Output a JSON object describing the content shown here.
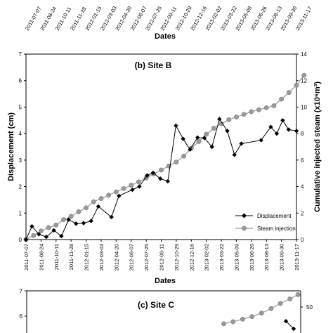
{
  "top_panel": {
    "tick_labels": [
      "2011-07-07",
      "2011-08-24",
      "2011-10-11",
      "2011-11-28",
      "2012-01-15",
      "2012-03-03",
      "2012-04-20",
      "2012-06-07",
      "2012-07-25",
      "2012-09-11",
      "2012-10-29",
      "2012-12-16",
      "2013-02-02",
      "2013-03-22",
      "2013-05-09",
      "2013-06-26",
      "2013-08-13",
      "2013-09-30",
      "2013-11-17"
    ],
    "xlabel": "Dates"
  },
  "chart_data": [
    {
      "type": "line",
      "title": "(b) Site B",
      "xlabel": "Dates",
      "ylabel": "Displacement (cm)",
      "y2label": "Cumulative injected steam (x10⁶m³)",
      "xlim": [
        "2011-07-07",
        "2013-11-17"
      ],
      "ylim": [
        0,
        7
      ],
      "y2lim": [
        0,
        14
      ],
      "yticks": [
        0,
        1,
        2,
        3,
        4,
        5,
        6,
        7
      ],
      "y2ticks": [
        0,
        2,
        4,
        6,
        8,
        10,
        12,
        14
      ],
      "xticks": [
        "2011-07-07",
        "2011-08-24",
        "2011-10-11",
        "2011-11-28",
        "2012-01-15",
        "2012-03-03",
        "2012-04-20",
        "2012-06-07",
        "2012-07-25",
        "2012-09-11",
        "2012-10-29",
        "2012-12-16",
        "2013-02-02",
        "2013-03-22",
        "2013-05-09",
        "2013-06-26",
        "2013-08-13",
        "2013-09-30",
        "2013-11-17"
      ],
      "grid": false,
      "legend": "bottom-right",
      "series": [
        {
          "name": "Displacement",
          "axis": "left",
          "color": "#000000",
          "marker": "diamond",
          "points": [
            [
              "2011-07-07",
              0.0
            ],
            [
              "2011-07-26",
              0.5
            ],
            [
              "2011-08-17",
              0.2
            ],
            [
              "2011-09-10",
              0.1
            ],
            [
              "2011-10-04",
              0.35
            ],
            [
              "2011-10-28",
              0.13
            ],
            [
              "2011-11-20",
              0.75
            ],
            [
              "2011-12-14",
              0.6
            ],
            [
              "2012-01-07",
              0.62
            ],
            [
              "2012-01-31",
              0.7
            ],
            [
              "2012-02-23",
              1.25
            ],
            [
              "2012-04-05",
              0.85
            ],
            [
              "2012-04-29",
              1.65
            ],
            [
              "2012-06-11",
              1.88
            ],
            [
              "2012-07-03",
              2.0
            ],
            [
              "2012-07-28",
              2.42
            ],
            [
              "2012-08-16",
              2.52
            ],
            [
              "2012-09-08",
              2.3
            ],
            [
              "2012-10-02",
              2.2
            ],
            [
              "2012-10-28",
              4.3
            ],
            [
              "2012-11-20",
              3.8
            ],
            [
              "2012-12-12",
              3.4
            ],
            [
              "2013-01-05",
              3.85
            ],
            [
              "2013-01-27",
              3.83
            ],
            [
              "2013-02-20",
              3.5
            ],
            [
              "2013-03-16",
              4.55
            ],
            [
              "2013-04-10",
              4.1
            ],
            [
              "2013-05-03",
              3.2
            ],
            [
              "2013-05-25",
              3.62
            ],
            [
              "2013-07-27",
              3.75
            ],
            [
              "2013-08-27",
              4.25
            ],
            [
              "2013-09-15",
              4.0
            ],
            [
              "2013-10-04",
              4.5
            ],
            [
              "2013-10-23",
              4.15
            ],
            [
              "2013-11-17",
              4.1
            ]
          ]
        },
        {
          "name": "Steam injection",
          "axis": "right",
          "color": "#999999",
          "marker": "circle",
          "points": [
            [
              "2011-07-07",
              0.0
            ],
            [
              "2011-07-31",
              0.3
            ],
            [
              "2011-08-24",
              0.65
            ],
            [
              "2011-09-17",
              0.9
            ],
            [
              "2011-10-11",
              1.1
            ],
            [
              "2011-11-04",
              1.5
            ],
            [
              "2011-11-28",
              1.75
            ],
            [
              "2011-12-22",
              2.1
            ],
            [
              "2012-01-15",
              2.4
            ],
            [
              "2012-02-08",
              2.85
            ],
            [
              "2012-03-03",
              3.1
            ],
            [
              "2012-03-27",
              3.35
            ],
            [
              "2012-04-20",
              3.6
            ],
            [
              "2012-05-14",
              3.85
            ],
            [
              "2012-06-07",
              4.1
            ],
            [
              "2012-07-01",
              4.35
            ],
            [
              "2012-07-25",
              4.65
            ],
            [
              "2012-08-18",
              4.95
            ],
            [
              "2012-09-11",
              5.25
            ],
            [
              "2012-10-05",
              5.55
            ],
            [
              "2012-10-29",
              5.85
            ],
            [
              "2012-11-22",
              6.3
            ],
            [
              "2012-12-16",
              6.9
            ],
            [
              "2013-01-09",
              7.4
            ],
            [
              "2013-02-02",
              7.95
            ],
            [
              "2013-02-26",
              8.4
            ],
            [
              "2013-03-22",
              8.75
            ],
            [
              "2013-04-15",
              9.05
            ],
            [
              "2013-05-09",
              9.25
            ],
            [
              "2013-06-02",
              9.45
            ],
            [
              "2013-06-26",
              9.65
            ],
            [
              "2013-07-20",
              9.8
            ],
            [
              "2013-08-13",
              9.95
            ],
            [
              "2013-09-06",
              10.1
            ],
            [
              "2013-09-30",
              10.6
            ],
            [
              "2013-10-24",
              11.1
            ],
            [
              "2013-11-17",
              11.65
            ],
            [
              "2013-12-11",
              12.4
            ]
          ]
        }
      ]
    },
    {
      "type": "line",
      "title": "(c) Site C",
      "yticks_visible": [
        6,
        7
      ],
      "y2ticks_visible": [
        50
      ],
      "ylim_partial": [
        5.5,
        7
      ],
      "series": [
        {
          "name": "Displacement",
          "color": "#000000",
          "marker": "diamond",
          "points": [
            [
              "2013-10-23",
              5.8
            ],
            [
              "2013-11-17",
              5.5
            ]
          ]
        },
        {
          "name": "Steam injection",
          "color": "#999999",
          "marker": "circle",
          "points": [
            [
              "2013-04-05",
              5.7
            ],
            [
              "2013-05-05",
              5.78
            ],
            [
              "2013-06-05",
              5.88
            ],
            [
              "2013-07-05",
              5.98
            ],
            [
              "2013-08-05",
              6.12
            ],
            [
              "2013-09-05",
              6.3
            ],
            [
              "2013-10-05",
              6.5
            ],
            [
              "2013-11-05",
              6.68
            ],
            [
              "2013-12-01",
              6.85
            ]
          ]
        }
      ]
    }
  ]
}
